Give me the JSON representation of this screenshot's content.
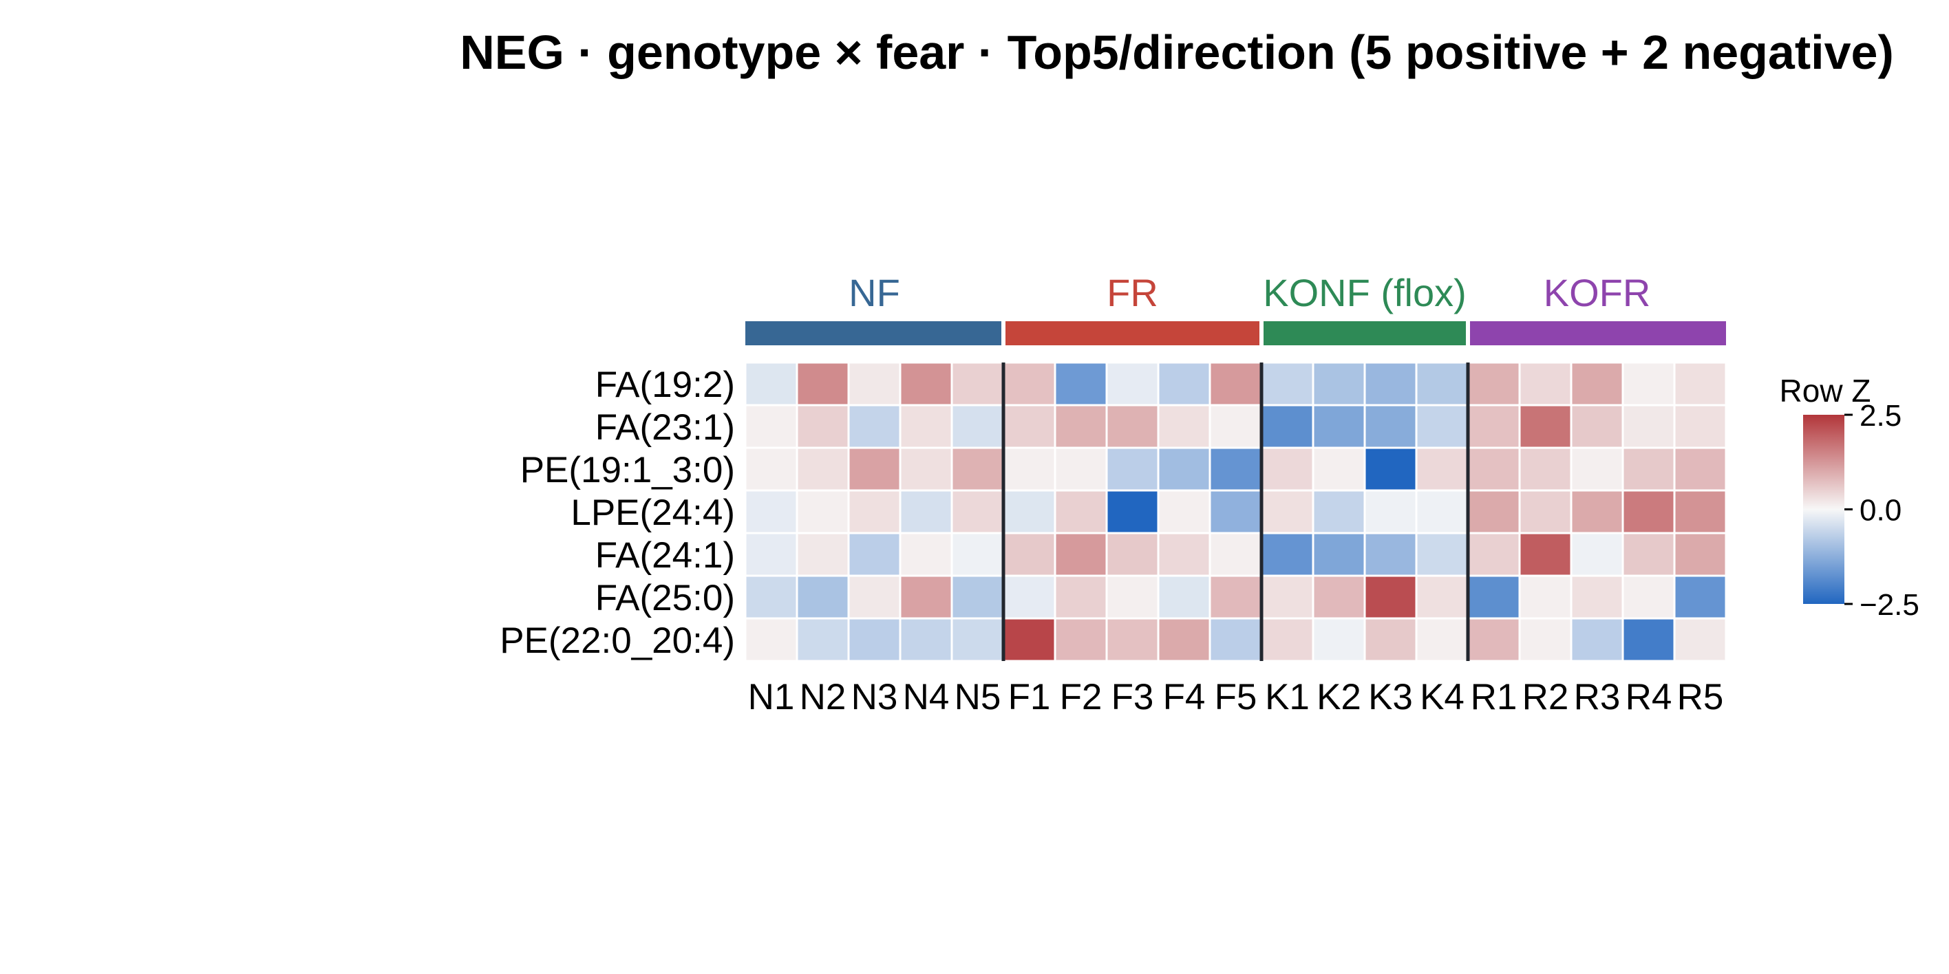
{
  "chart_data": {
    "type": "heatmap",
    "title": "NEG · genotype × fear · Top5/direction (5 positive + 2 negative)",
    "rows": [
      "FA(19:2)",
      "FA(23:1)",
      "PE(19:1_3:0)",
      "LPE(24:4)",
      "FA(24:1)",
      "FA(25:0)",
      "PE(22:0_20:4)"
    ],
    "columns": [
      "N1",
      "N2",
      "N3",
      "N4",
      "N5",
      "F1",
      "F2",
      "F3",
      "F4",
      "F5",
      "K1",
      "K2",
      "K3",
      "K4",
      "R1",
      "R2",
      "R3",
      "R4",
      "R5"
    ],
    "groups": [
      {
        "name": "NF",
        "count": 5,
        "color": "#376794"
      },
      {
        "name": "FR",
        "count": 5,
        "color": "#c5453a"
      },
      {
        "name": "KONF (flox)",
        "count": 4,
        "color": "#2e8a56"
      },
      {
        "name": "KOFR",
        "count": 5,
        "color": "#8e44ad"
      }
    ],
    "values": [
      [
        -0.3,
        1.4,
        0.2,
        1.3,
        0.5,
        0.7,
        -1.6,
        -0.2,
        -0.7,
        1.2,
        -0.6,
        -0.9,
        -1.1,
        -0.8,
        0.9,
        0.4,
        1.0,
        0.1,
        0.3
      ],
      [
        0.1,
        0.5,
        -0.6,
        0.3,
        -0.4,
        0.5,
        0.9,
        0.9,
        0.3,
        0.1,
        -1.8,
        -1.4,
        -1.3,
        -0.6,
        0.7,
        1.7,
        0.6,
        0.2,
        0.3
      ],
      [
        0.1,
        0.3,
        1.1,
        0.3,
        0.9,
        0.1,
        0.1,
        -0.7,
        -1.0,
        -1.7,
        0.4,
        0.1,
        -2.5,
        0.4,
        0.7,
        0.5,
        0.1,
        0.6,
        0.8
      ],
      [
        -0.2,
        0.1,
        0.3,
        -0.4,
        0.4,
        -0.3,
        0.5,
        -2.5,
        0.1,
        -1.2,
        0.3,
        -0.6,
        -0.1,
        -0.1,
        1.0,
        0.5,
        1.0,
        1.6,
        1.3
      ],
      [
        -0.2,
        0.2,
        -0.7,
        0.1,
        -0.1,
        0.6,
        1.2,
        0.6,
        0.4,
        0.1,
        -1.7,
        -1.4,
        -1.1,
        -0.5,
        0.5,
        2.0,
        -0.1,
        0.6,
        1.0
      ],
      [
        -0.5,
        -0.9,
        0.2,
        1.1,
        -0.8,
        -0.2,
        0.5,
        0.1,
        -0.3,
        0.8,
        0.3,
        0.8,
        2.2,
        0.3,
        -1.8,
        0.1,
        0.3,
        0.1,
        -1.7
      ],
      [
        0.1,
        -0.5,
        -0.7,
        -0.6,
        -0.5,
        2.3,
        0.8,
        0.7,
        1.0,
        -0.7,
        0.4,
        -0.1,
        0.6,
        0.1,
        0.8,
        0.1,
        -0.7,
        -2.1,
        0.2
      ]
    ],
    "color_scale": {
      "min": -2.5,
      "max": 2.5,
      "low_color": "#2166c0",
      "mid_color": "#f7f7f7",
      "high_color": "#b2363a"
    },
    "legend": {
      "title": "Row Z",
      "ticks": [
        "2.5",
        "0.0",
        "−2.5"
      ],
      "tick_values": [
        2.5,
        0.0,
        -2.5
      ]
    }
  }
}
